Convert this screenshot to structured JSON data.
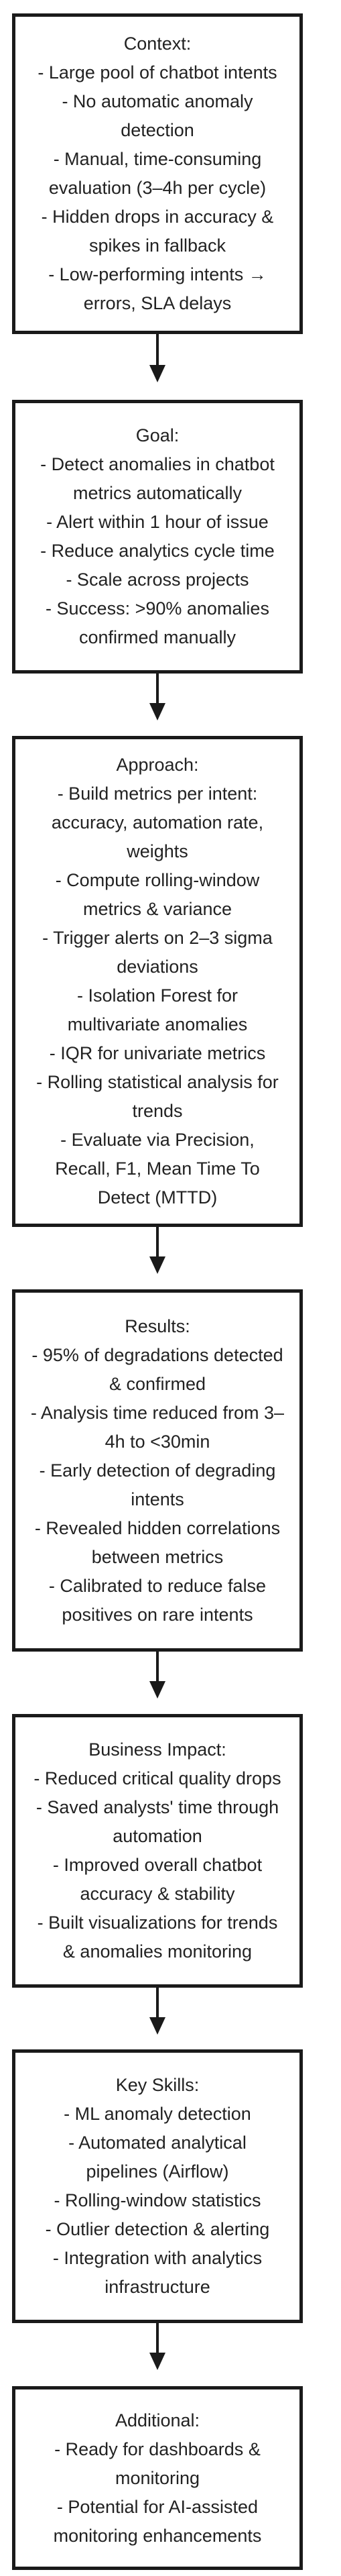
{
  "nodes": [
    {
      "title": "Context:",
      "lines": [
        "- Large pool of chatbot intents",
        "- No automatic anomaly",
        "detection",
        "- Manual, time-consuming",
        "evaluation (3–4h per cycle)",
        "- Hidden drops in accuracy &",
        "spikes in fallback",
        "- Low-performing intents →",
        "errors, SLA delays"
      ]
    },
    {
      "title": "Goal:",
      "lines": [
        "- Detect anomalies in chatbot",
        "metrics automatically",
        "- Alert within 1 hour of issue",
        "- Reduce analytics cycle time",
        "- Scale across projects",
        "- Success: >90% anomalies",
        "confirmed manually"
      ]
    },
    {
      "title": "Approach:",
      "lines": [
        "- Build metrics per intent:",
        "accuracy, automation rate,",
        "weights",
        "- Compute rolling-window",
        "metrics & variance",
        "- Trigger alerts on 2–3 sigma",
        "deviations",
        "- Isolation Forest for",
        "multivariate anomalies",
        "- IQR for univariate metrics",
        "- Rolling statistical analysis for",
        "trends",
        "- Evaluate via Precision,",
        "Recall, F1, Mean Time To",
        "Detect (MTTD)"
      ]
    },
    {
      "title": "Results:",
      "lines": [
        "- 95% of degradations detected",
        "& confirmed",
        "- Analysis time reduced from 3–",
        "4h to <30min",
        "- Early detection of degrading",
        "intents",
        "- Revealed hidden correlations",
        "between metrics",
        "- Calibrated to reduce false",
        "positives on rare intents"
      ]
    },
    {
      "title": "Business Impact:",
      "lines": [
        "- Reduced critical quality drops",
        "- Saved analysts' time through",
        "automation",
        "- Improved overall chatbot",
        "accuracy & stability",
        "- Built visualizations for trends",
        "& anomalies monitoring"
      ]
    },
    {
      "title": "Key Skills:",
      "lines": [
        "- ML anomaly detection",
        "- Automated analytical",
        "pipelines (Airflow)",
        "- Rolling-window statistics",
        "- Outlier detection & alerting",
        "- Integration with analytics",
        "infrastructure"
      ]
    },
    {
      "title": "Additional:",
      "lines": [
        "- Ready for dashboards &",
        "monitoring",
        "- Potential for AI-assisted",
        "monitoring enhancements"
      ]
    }
  ]
}
